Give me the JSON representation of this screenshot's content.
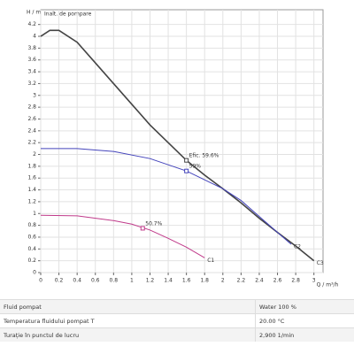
{
  "chart_data": {
    "type": "line",
    "y_label": "H / m",
    "x_label": "Q / m³/h",
    "legend_title": "Inalt. de pompare",
    "xlim": [
      0,
      3.1
    ],
    "ylim": [
      0,
      4.45
    ],
    "xticks": [
      0,
      0.2,
      0.4,
      0.6,
      0.8,
      1,
      1.2,
      1.4,
      1.6,
      1.8,
      2,
      2.2,
      2.4,
      2.6,
      2.8,
      3
    ],
    "yticks": [
      0,
      0.2,
      0.4,
      0.6,
      0.8,
      1,
      1.2,
      1.4,
      1.6,
      1.8,
      2,
      2.2,
      2.4,
      2.6,
      2.8,
      3,
      3.2,
      3.4,
      3.6,
      3.8,
      4,
      4.2
    ],
    "grid": true,
    "series": [
      {
        "name": "C3",
        "color": "#444444",
        "x": [
          0,
          0.1,
          0.2,
          0.4,
          0.6,
          0.8,
          1,
          1.2,
          1.4,
          1.6,
          1.8,
          2,
          2.2,
          2.4,
          2.6,
          2.8,
          3
        ],
        "values": [
          4.0,
          4.1,
          4.1,
          3.9,
          3.55,
          3.2,
          2.85,
          2.5,
          2.2,
          1.9,
          1.65,
          1.42,
          1.18,
          0.92,
          0.68,
          0.45,
          0.2
        ]
      },
      {
        "name": "C2",
        "color": "#4444bb",
        "x": [
          0,
          0.4,
          0.8,
          1.2,
          1.6,
          2,
          2.2,
          2.4,
          2.6,
          2.75
        ],
        "values": [
          2.1,
          2.1,
          2.05,
          1.93,
          1.72,
          1.42,
          1.22,
          0.95,
          0.68,
          0.48
        ]
      },
      {
        "name": "C1",
        "color": "#c03a8a",
        "x": [
          0,
          0.4,
          0.8,
          1,
          1.2,
          1.4,
          1.6,
          1.8
        ],
        "values": [
          0.97,
          0.96,
          0.88,
          0.82,
          0.72,
          0.58,
          0.43,
          0.25
        ]
      }
    ],
    "annotations": [
      {
        "label": "Efic. 59.6%",
        "x": 1.6,
        "y": 1.9,
        "color": "#444444"
      },
      {
        "label": "59%",
        "x": 1.6,
        "y": 1.72,
        "color": "#4444bb"
      },
      {
        "label": "50.7%",
        "x": 1.12,
        "y": 0.75,
        "color": "#c03a8a"
      }
    ]
  },
  "table": {
    "rows": [
      [
        "Fluid pompat",
        "Water 100 %"
      ],
      [
        "Temperatura fluidului pompat T",
        "20.00 °C"
      ],
      [
        "Turație în punctul de lucru",
        "2,900 1/min"
      ]
    ]
  }
}
